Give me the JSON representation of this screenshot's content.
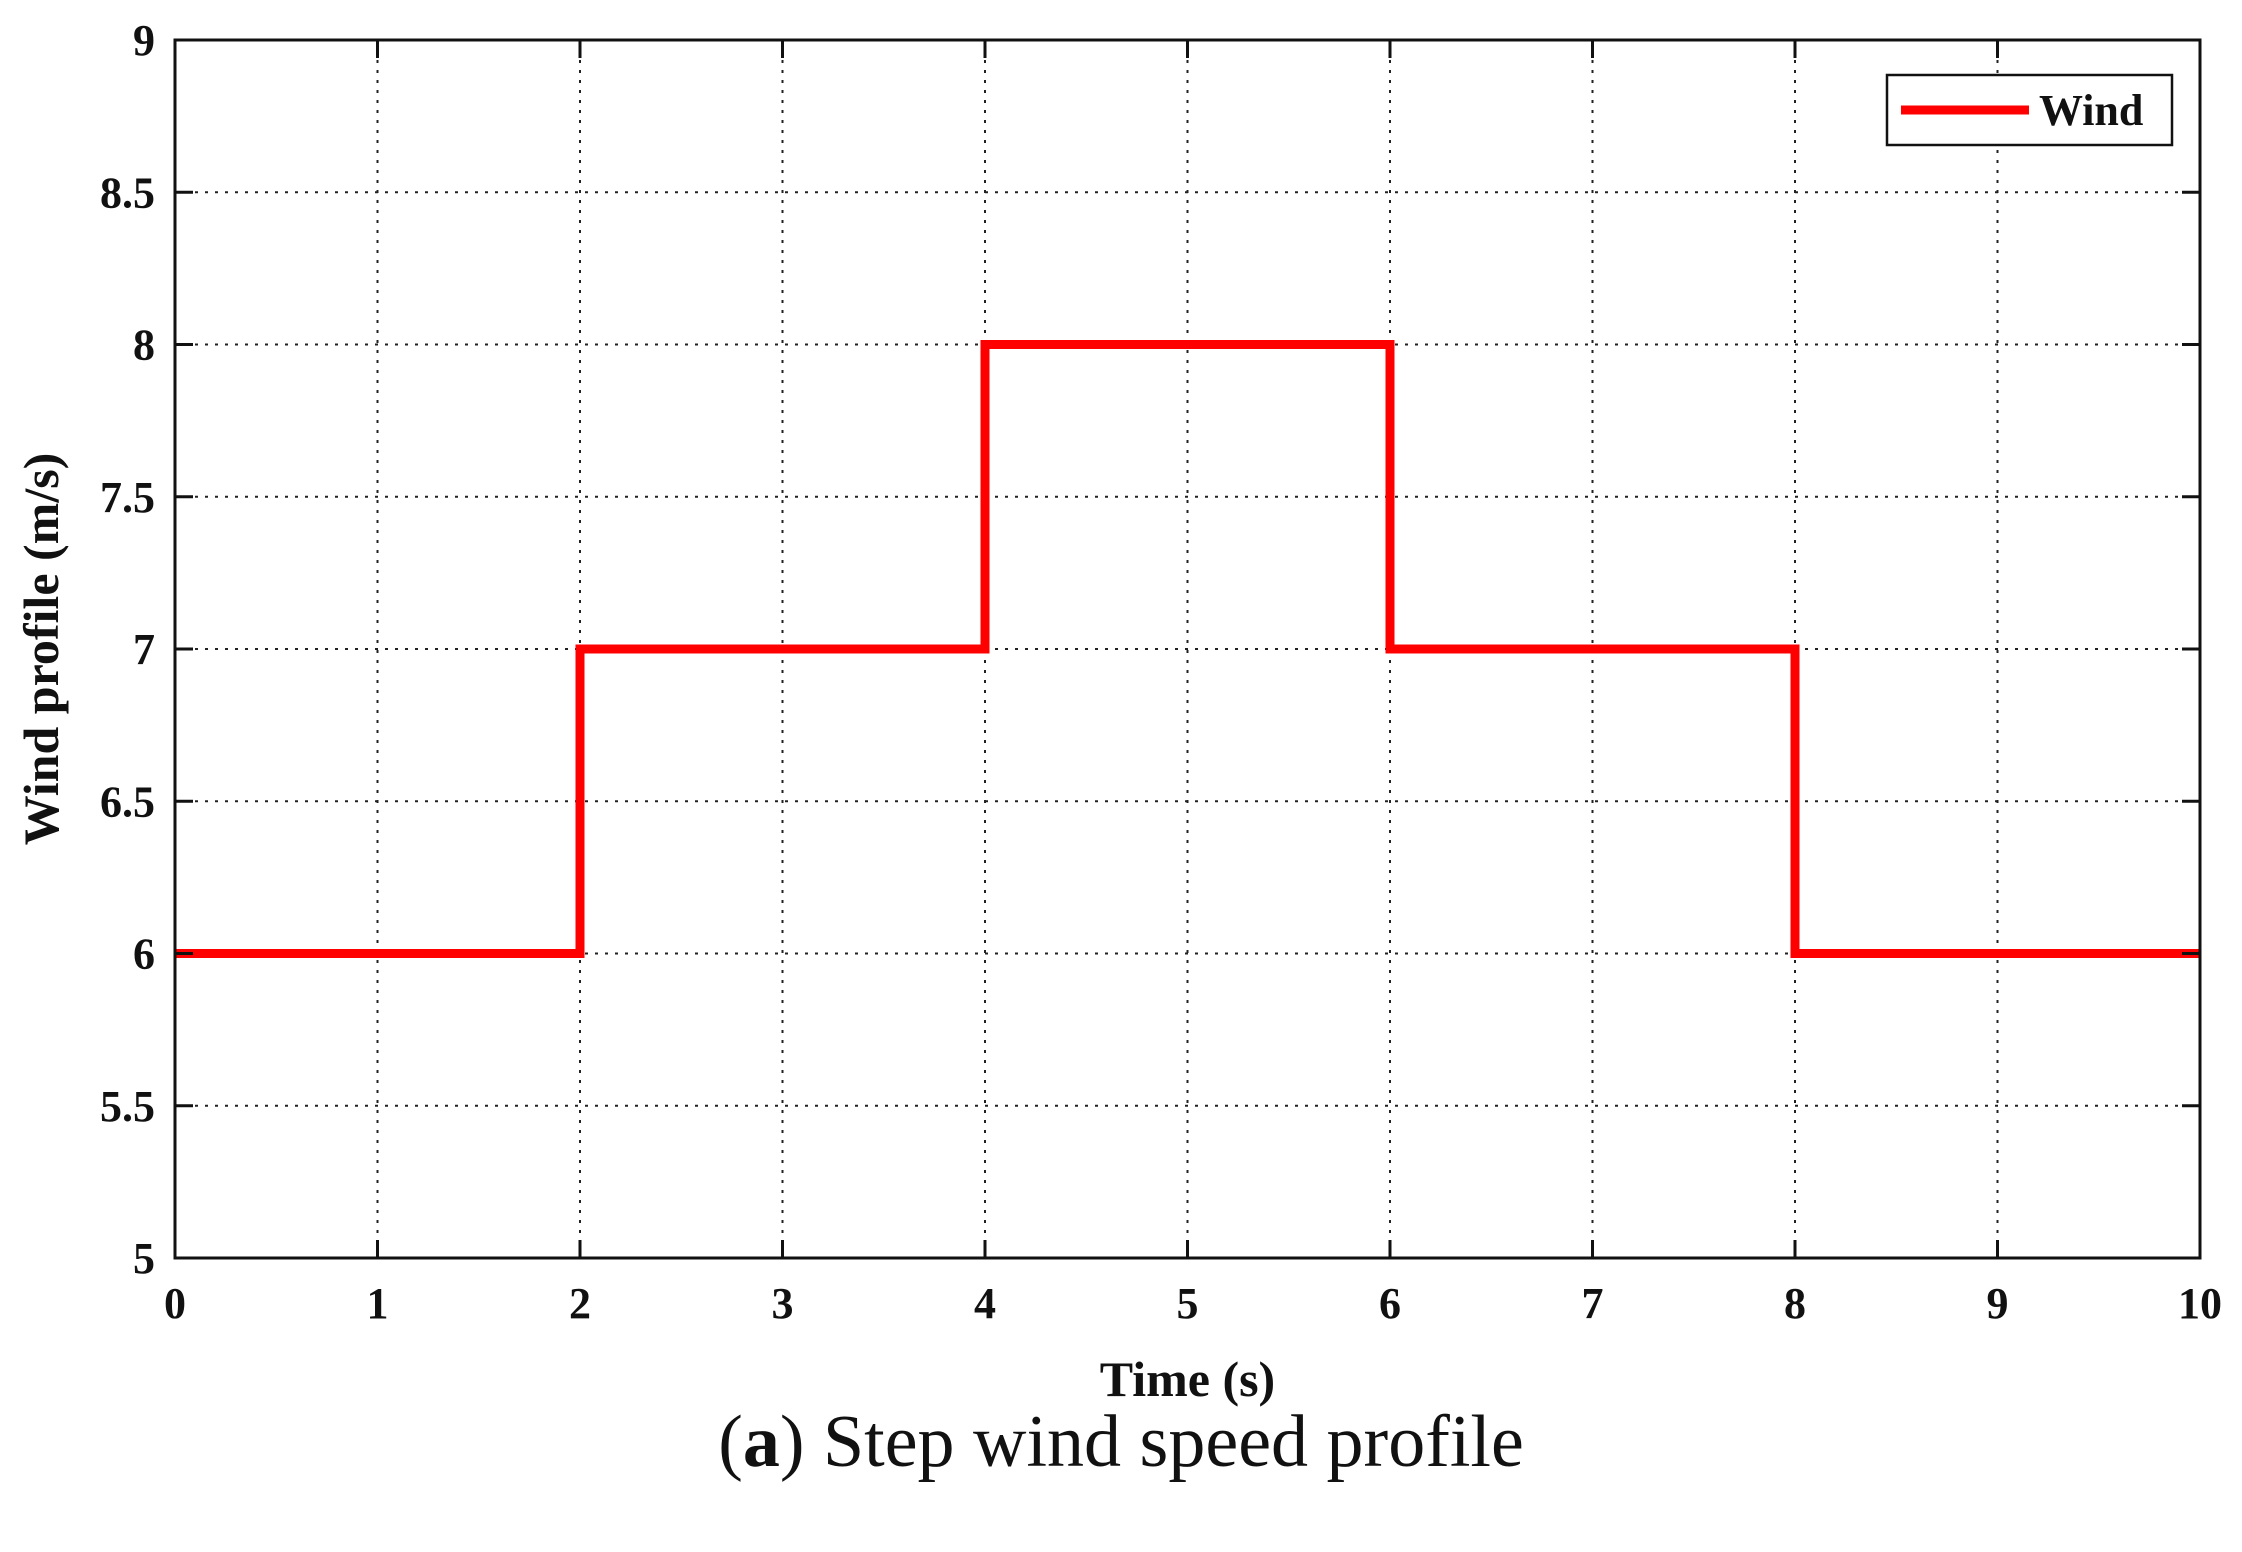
{
  "chart_data": {
    "type": "line",
    "xlabel": "Time (s)",
    "ylabel": "Wind profile (m/s)",
    "xlim": [
      0,
      10
    ],
    "ylim": [
      5,
      9
    ],
    "xticks": [
      "0",
      "1",
      "2",
      "3",
      "4",
      "5",
      "6",
      "7",
      "8",
      "9",
      "10"
    ],
    "yticks": [
      "5",
      "5.5",
      "6",
      "6.5",
      "7",
      "7.5",
      "8",
      "8.5",
      "9"
    ],
    "grid": true,
    "legend": "top-right",
    "series": [
      {
        "name": "Wind",
        "color": "#ff0000",
        "x": [
          0,
          2,
          2,
          4,
          4,
          6,
          6,
          8,
          8,
          10
        ],
        "y": [
          6,
          6,
          7,
          7,
          8,
          8,
          7,
          7,
          6,
          6
        ]
      }
    ]
  },
  "caption": {
    "label": "a",
    "text": " Step wind speed profile"
  }
}
